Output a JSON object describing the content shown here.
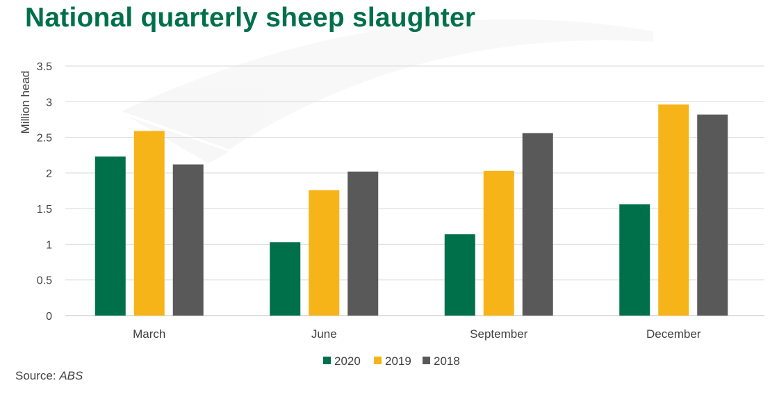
{
  "title": "National quarterly sheep slaughter",
  "source": {
    "label": "Source: ",
    "value": "ABS"
  },
  "chart_data": {
    "type": "bar",
    "categories": [
      "March",
      "June",
      "September",
      "December"
    ],
    "series": [
      {
        "name": "2020",
        "color": "#00704A",
        "values": [
          2.23,
          1.03,
          1.14,
          1.56
        ]
      },
      {
        "name": "2019",
        "color": "#F7B418",
        "values": [
          2.59,
          1.76,
          2.03,
          2.96
        ]
      },
      {
        "name": "2018",
        "color": "#595959",
        "values": [
          2.12,
          2.02,
          2.56,
          2.82
        ]
      }
    ],
    "title": "National quarterly sheep slaughter",
    "xlabel": "",
    "ylabel": "Million head",
    "ylim": [
      0,
      3.5
    ],
    "yticks": [
      "0",
      "0.5",
      "1",
      "1.5",
      "2",
      "2.5",
      "3",
      "3.5"
    ],
    "grid": true,
    "legend": "bottom"
  }
}
